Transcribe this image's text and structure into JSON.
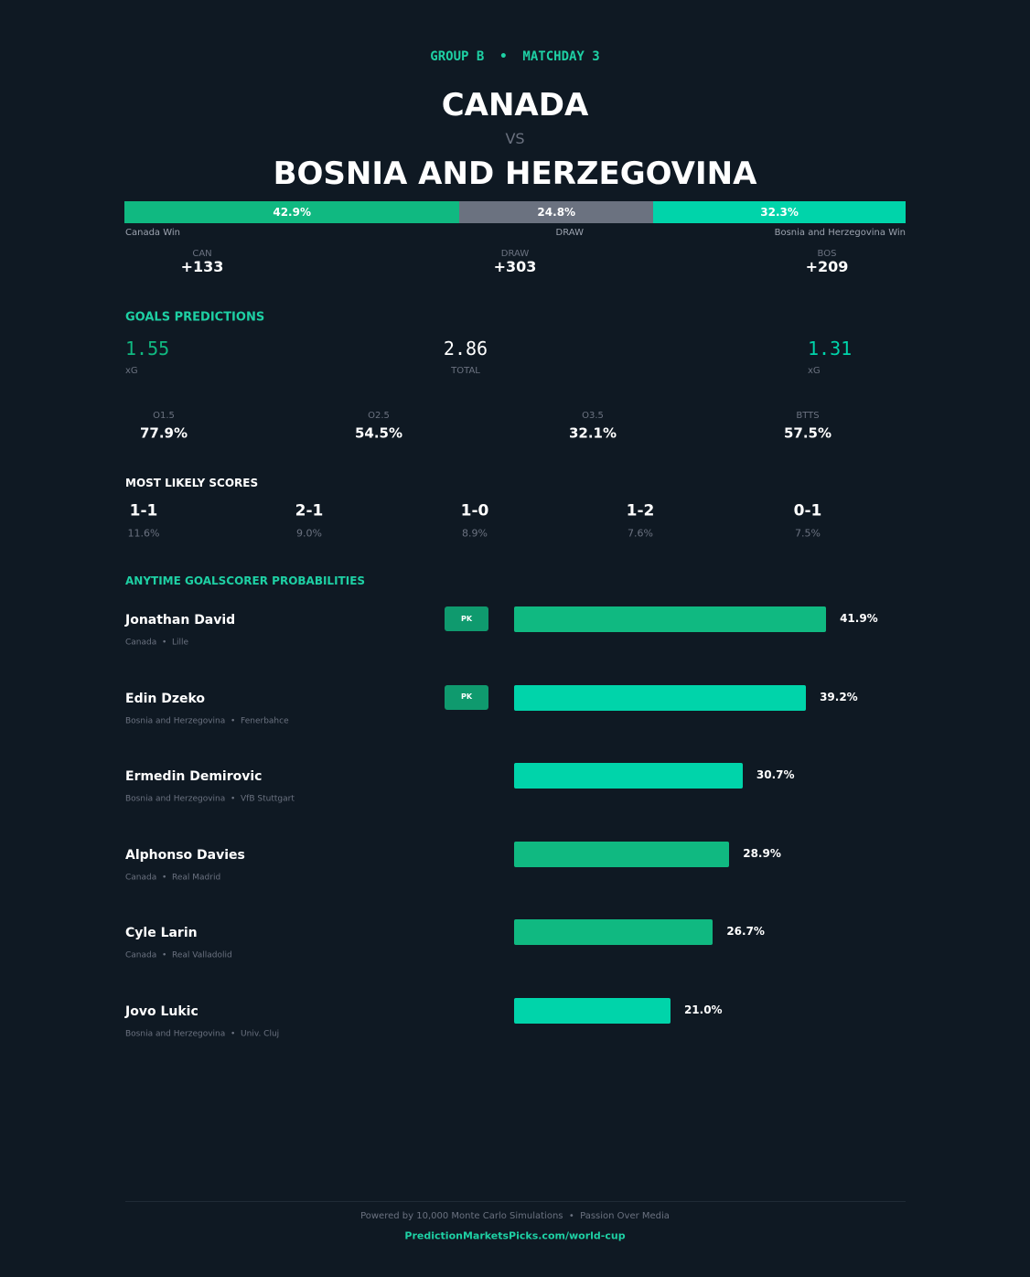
{
  "header": {
    "kicker": "GROUP B  •  MATCHDAY 3",
    "home": "CANADA",
    "vs": "VS",
    "away": "BOSNIA AND HERZEGOVINA"
  },
  "outcomes": [
    {
      "value": 42.9,
      "label": "42.9%",
      "name": "Canada Win",
      "color": "#10b981",
      "code": "CAN",
      "odds": "+133"
    },
    {
      "value": 24.8,
      "label": "24.8%",
      "name": "DRAW",
      "color": "#6b7280",
      "code": "DRAW",
      "odds": "+303"
    },
    {
      "value": 32.3,
      "label": "32.3%",
      "name": "Bosnia and Herzegovina Win",
      "color": "#00d4aa",
      "code": "BOS",
      "odds": "+209"
    }
  ],
  "goals": {
    "title": "GOALS PREDICTIONS",
    "home": {
      "value": "1.55",
      "label": "xG"
    },
    "total": {
      "value": "2.86",
      "label": "TOTAL"
    },
    "away": {
      "value": "1.31",
      "label": "xG"
    },
    "markets": [
      {
        "name": "O1.5",
        "value": "77.9%"
      },
      {
        "name": "O2.5",
        "value": "54.5%"
      },
      {
        "name": "O3.5",
        "value": "32.1%"
      },
      {
        "name": "BTTS",
        "value": "57.5%"
      }
    ]
  },
  "scores": {
    "title": "MOST LIKELY SCORES",
    "items": [
      {
        "score": "1-1",
        "prob": "11.6%"
      },
      {
        "score": "2-1",
        "prob": "9.0%"
      },
      {
        "score": "1-0",
        "prob": "8.9%"
      },
      {
        "score": "1-2",
        "prob": "7.6%"
      },
      {
        "score": "0-1",
        "prob": "7.5%"
      }
    ]
  },
  "scorers": {
    "title": "ANYTIME GOALSCORER PROBABILITIES",
    "players": [
      {
        "name": "Jonathan David",
        "detail": "Canada  •  Lille",
        "pk": "PK",
        "value": 41.9,
        "label": "41.9%",
        "color": "#10b981"
      },
      {
        "name": "Edin Dzeko",
        "detail": "Bosnia and Herzegovina  •  Fenerbahce",
        "pk": "PK",
        "value": 39.2,
        "label": "39.2%",
        "color": "#00d4aa"
      },
      {
        "name": "Ermedin Demirovic",
        "detail": "Bosnia and Herzegovina  •  VfB Stuttgart",
        "value": 30.7,
        "label": "30.7%",
        "color": "#00d4aa"
      },
      {
        "name": "Alphonso Davies",
        "detail": "Canada  •  Real Madrid",
        "value": 28.9,
        "label": "28.9%",
        "color": "#10b981"
      },
      {
        "name": "Cyle Larin",
        "detail": "Canada  •  Real Valladolid",
        "value": 26.7,
        "label": "26.7%",
        "color": "#10b981"
      },
      {
        "name": "Jovo Lukic",
        "detail": "Bosnia and Herzegovina  •  Univ. Cluj",
        "value": 21.0,
        "label": "21.0%",
        "color": "#00d4aa"
      }
    ]
  },
  "footer": {
    "note": "Powered by 10,000 Monte Carlo Simulations  •  Passion Over Media",
    "url": "PredictionMarketsPicks.com/world-cup"
  }
}
